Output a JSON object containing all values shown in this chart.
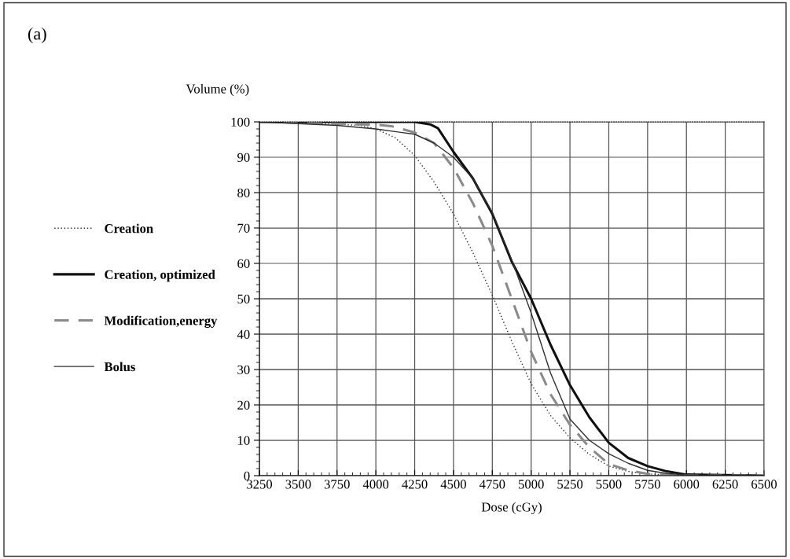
{
  "chart_data": {
    "type": "line",
    "title": "(a)",
    "xlabel": "Dose (cGy)",
    "ylabel": "Volume (%)",
    "xlim": [
      3250,
      6500
    ],
    "xticks": [
      3250,
      3500,
      3750,
      4000,
      4250,
      4500,
      4750,
      5000,
      5250,
      5500,
      5750,
      6000,
      6250,
      6500
    ],
    "ylim": [
      0,
      100
    ],
    "yticks": [
      0,
      10,
      20,
      30,
      40,
      50,
      60,
      70,
      80,
      90,
      100
    ],
    "grid": true,
    "legend": "left",
    "series": [
      {
        "name": "Creation",
        "color": "#303030",
        "line_style": "dotted",
        "x": [
          3250,
          3500,
          3750,
          3900,
          4000,
          4125,
          4250,
          4375,
          4500,
          4625,
          4750,
          4875,
          5000,
          5125,
          5250,
          5375,
          5500,
          5625,
          5750,
          5875,
          6000,
          6500
        ],
        "values": [
          100,
          99.8,
          99.3,
          99,
          98,
          95.5,
          90.5,
          83,
          74,
          63,
          51,
          38,
          26,
          17,
          10.7,
          6,
          2.7,
          1.2,
          0.5,
          0.2,
          0,
          0
        ]
      },
      {
        "name": "Creation, optimized",
        "color": "#101010",
        "line_style": "solid",
        "x": [
          3250,
          3500,
          3750,
          4000,
          4250,
          4350,
          4400,
          4500,
          4625,
          4750,
          4875,
          5000,
          5125,
          5250,
          5375,
          5500,
          5625,
          5750,
          5875,
          6000,
          6500
        ],
        "values": [
          100,
          100,
          100,
          100,
          100,
          99.3,
          98.2,
          91.5,
          84,
          74,
          60.5,
          50,
          37,
          25.6,
          16.5,
          9.3,
          5,
          2.7,
          1.2,
          0.3,
          0
        ]
      },
      {
        "name": "Modification,energy",
        "color": "#8a8a8a",
        "line_style": "dashed",
        "x": [
          3250,
          3500,
          3750,
          4000,
          4100,
          4250,
          4375,
          4500,
          4625,
          4750,
          4875,
          5000,
          5125,
          5250,
          5375,
          5500,
          5625,
          5750,
          5875,
          6000,
          6500
        ],
        "values": [
          100,
          99.8,
          99.5,
          99.2,
          98.8,
          97,
          94,
          87,
          77,
          65,
          50,
          35,
          23,
          14.4,
          8,
          3.3,
          1.5,
          0.5,
          0.2,
          0,
          0
        ]
      },
      {
        "name": "Bolus",
        "color": "#303030",
        "line_style": "solid",
        "x": [
          3250,
          3500,
          3750,
          4000,
          4250,
          4375,
          4500,
          4625,
          4750,
          4875,
          5000,
          5125,
          5250,
          5375,
          5500,
          5625,
          5750,
          5875,
          6000,
          6500
        ],
        "values": [
          100,
          99.5,
          99,
          98,
          96.5,
          94,
          90,
          84,
          74.4,
          61,
          46,
          29,
          16,
          10,
          6.2,
          3.5,
          1.5,
          0.6,
          0.2,
          0
        ]
      }
    ]
  }
}
